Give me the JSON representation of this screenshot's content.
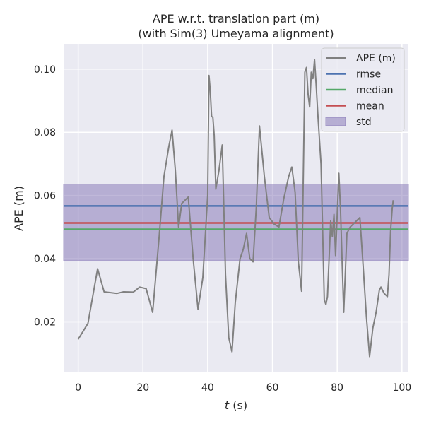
{
  "chart_data": {
    "type": "line",
    "title": "APE w.r.t. translation part (m)",
    "subtitle": "(with Sim(3) Umeyama alignment)",
    "xlabel_italic": "t",
    "xlabel_unit": " (s)",
    "ylabel": "APE (m)",
    "xlim": [
      -4.5,
      102
    ],
    "ylim": [
      0.004,
      0.108
    ],
    "xticks": [
      0,
      20,
      40,
      60,
      80,
      100
    ],
    "yticks": [
      0.02,
      0.04,
      0.06,
      0.08,
      0.1
    ],
    "xtick_labels": [
      "0",
      "20",
      "40",
      "60",
      "80",
      "100"
    ],
    "ytick_labels": [
      "0.02",
      "0.04",
      "0.06",
      "0.08",
      "0.10"
    ],
    "grid": true,
    "legend_position": "top-right",
    "series": [
      {
        "name": "APE (m)",
        "color": "#808080",
        "x": [
          0,
          3,
          6,
          8,
          12,
          14,
          17,
          19,
          21,
          23,
          25,
          26.5,
          28,
          29,
          30,
          31,
          32,
          34,
          35.5,
          37,
          38.5,
          40,
          40.4,
          40.8,
          41.2,
          41.6,
          42,
          42.5,
          43.5,
          44.5,
          45.5,
          46.5,
          47.5,
          48.5,
          50,
          51,
          52,
          53,
          54,
          55,
          56,
          57.5,
          59,
          60.5,
          62,
          63.5,
          65,
          66,
          67,
          68,
          69,
          70,
          70.5,
          71,
          71.5,
          72,
          72.5,
          73,
          73.5,
          74,
          75,
          76,
          76.5,
          77,
          78,
          78.5,
          79,
          79.5,
          80.5,
          81,
          82,
          82.5,
          83,
          84,
          86,
          87,
          88,
          89,
          90,
          91,
          92,
          93,
          93.5,
          94.5,
          95.5,
          96,
          96.5,
          97,
          97.3
        ],
        "y": [
          0.0145,
          0.0195,
          0.0368,
          0.0295,
          0.029,
          0.0295,
          0.0294,
          0.031,
          0.0305,
          0.023,
          0.047,
          0.066,
          0.0755,
          0.0807,
          0.068,
          0.05,
          0.0575,
          0.0595,
          0.04,
          0.024,
          0.034,
          0.06,
          0.098,
          0.093,
          0.085,
          0.0848,
          0.079,
          0.062,
          0.068,
          0.076,
          0.035,
          0.015,
          0.0105,
          0.026,
          0.04,
          0.043,
          0.048,
          0.04,
          0.039,
          0.056,
          0.082,
          0.066,
          0.053,
          0.051,
          0.05,
          0.059,
          0.066,
          0.069,
          0.061,
          0.039,
          0.0297,
          0.099,
          0.1005,
          0.092,
          0.088,
          0.099,
          0.097,
          0.103,
          0.095,
          0.086,
          0.07,
          0.027,
          0.0255,
          0.028,
          0.052,
          0.047,
          0.054,
          0.041,
          0.067,
          0.056,
          0.023,
          0.035,
          0.048,
          0.05,
          0.052,
          0.053,
          0.038,
          0.022,
          0.009,
          0.018,
          0.023,
          0.03,
          0.031,
          0.029,
          0.028,
          0.035,
          0.049,
          0.056,
          0.0585
        ]
      },
      {
        "name": "rmse",
        "color": "#4c72b0",
        "y": 0.0567
      },
      {
        "name": "median",
        "color": "#55a868",
        "y": 0.0493
      },
      {
        "name": "mean",
        "color": "#c44e52",
        "y": 0.0513
      },
      {
        "name": "std",
        "color": "#8172b3",
        "y_range": [
          0.0393,
          0.0636
        ]
      }
    ]
  }
}
